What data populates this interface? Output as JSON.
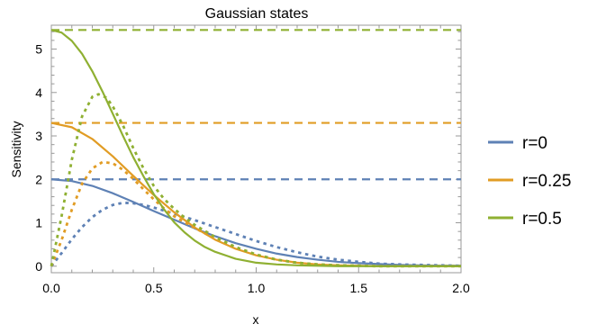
{
  "chart_data": {
    "type": "line",
    "title": "Gaussian states",
    "xlabel": "x",
    "ylabel": "Sensitivity",
    "xlim": [
      0,
      2
    ],
    "ylim": [
      -0.15,
      5.55
    ],
    "x_ticks": [
      "0.0",
      "0.5",
      "1.0",
      "1.5",
      "2.0"
    ],
    "y_ticks": [
      "0",
      "1",
      "2",
      "3",
      "4",
      "5"
    ],
    "grid": false,
    "legend_position": "right",
    "colors": {
      "r=0": "#5e81b5",
      "r=0.25": "#e19c24",
      "r=0.5": "#8fb032"
    },
    "series": [
      {
        "name": "r=0",
        "color": "#5e81b5",
        "solid": {
          "x": [
            0,
            0.1,
            0.2,
            0.3,
            0.4,
            0.5,
            0.6,
            0.7,
            0.8,
            0.9,
            1.0,
            1.1,
            1.2,
            1.3,
            1.4,
            1.5,
            1.6,
            1.7,
            1.8,
            1.9,
            2.0
          ],
          "y": [
            2.0,
            1.96,
            1.85,
            1.68,
            1.48,
            1.27,
            1.07,
            0.87,
            0.69,
            0.53,
            0.4,
            0.29,
            0.21,
            0.15,
            0.1,
            0.07,
            0.05,
            0.03,
            0.02,
            0.01,
            0.01
          ]
        },
        "dotted": {
          "x": [
            0,
            0.05,
            0.1,
            0.15,
            0.2,
            0.25,
            0.3,
            0.35,
            0.4,
            0.45,
            0.5,
            0.6,
            0.7,
            0.8,
            0.9,
            1.0,
            1.1,
            1.2,
            1.3,
            1.4,
            1.5,
            1.6,
            1.7,
            1.8,
            1.9,
            2.0
          ],
          "y": [
            0.0,
            0.3,
            0.62,
            0.9,
            1.13,
            1.3,
            1.41,
            1.46,
            1.45,
            1.41,
            1.35,
            1.21,
            1.06,
            0.9,
            0.74,
            0.58,
            0.44,
            0.32,
            0.22,
            0.15,
            0.1,
            0.06,
            0.04,
            0.03,
            0.02,
            0.01
          ]
        },
        "reference": 2.0
      },
      {
        "name": "r=0.25",
        "color": "#e19c24",
        "solid": {
          "x": [
            0,
            0.1,
            0.2,
            0.3,
            0.4,
            0.5,
            0.6,
            0.7,
            0.8,
            0.9,
            1.0,
            1.1,
            1.2,
            1.3,
            1.4,
            1.5,
            1.6,
            1.7,
            1.8,
            1.9,
            2.0
          ],
          "y": [
            3.3,
            3.2,
            2.93,
            2.53,
            2.08,
            1.64,
            1.24,
            0.89,
            0.61,
            0.4,
            0.25,
            0.15,
            0.08,
            0.04,
            0.02,
            0.01,
            0.0,
            0.0,
            0.0,
            0.0,
            0.0
          ]
        },
        "dotted": {
          "x": [
            0,
            0.05,
            0.1,
            0.15,
            0.2,
            0.25,
            0.3,
            0.35,
            0.4,
            0.45,
            0.5,
            0.55,
            0.6,
            0.7,
            0.8,
            0.9,
            1.0,
            1.1,
            1.2,
            1.3,
            1.4,
            1.5,
            1.6,
            1.8,
            2.0
          ],
          "y": [
            0.0,
            0.6,
            1.3,
            1.9,
            2.25,
            2.4,
            2.37,
            2.22,
            2.01,
            1.77,
            1.54,
            1.33,
            1.15,
            0.88,
            0.63,
            0.42,
            0.26,
            0.15,
            0.08,
            0.04,
            0.02,
            0.01,
            0.0,
            0.0,
            0.0
          ]
        },
        "reference": 3.3
      },
      {
        "name": "r=0.5",
        "color": "#8fb032",
        "solid": {
          "x": [
            0,
            0.05,
            0.1,
            0.15,
            0.2,
            0.25,
            0.3,
            0.35,
            0.4,
            0.45,
            0.5,
            0.55,
            0.6,
            0.65,
            0.7,
            0.75,
            0.8,
            0.9,
            1.0,
            1.1,
            1.2,
            1.3,
            1.4,
            1.5,
            1.6,
            1.8,
            2.0
          ],
          "y": [
            5.44,
            5.38,
            5.19,
            4.89,
            4.49,
            4.02,
            3.51,
            3.0,
            2.51,
            2.07,
            1.66,
            1.31,
            1.01,
            0.78,
            0.59,
            0.44,
            0.33,
            0.17,
            0.08,
            0.04,
            0.02,
            0.01,
            0.0,
            0.0,
            0.0,
            0.0,
            0.0
          ]
        },
        "dotted": {
          "x": [
            0,
            0.05,
            0.1,
            0.15,
            0.2,
            0.23,
            0.27,
            0.3,
            0.35,
            0.4,
            0.45,
            0.5,
            0.55,
            0.6,
            0.65,
            0.7,
            0.8,
            0.9,
            1.0,
            1.1,
            1.2,
            1.3,
            1.4,
            1.6,
            2.0
          ],
          "y": [
            0.0,
            1.15,
            2.45,
            3.45,
            3.9,
            3.96,
            3.88,
            3.68,
            3.24,
            2.72,
            2.25,
            1.85,
            1.55,
            1.32,
            1.12,
            0.95,
            0.67,
            0.44,
            0.27,
            0.15,
            0.08,
            0.04,
            0.02,
            0.0,
            0.0
          ]
        },
        "reference": 5.44
      }
    ]
  }
}
